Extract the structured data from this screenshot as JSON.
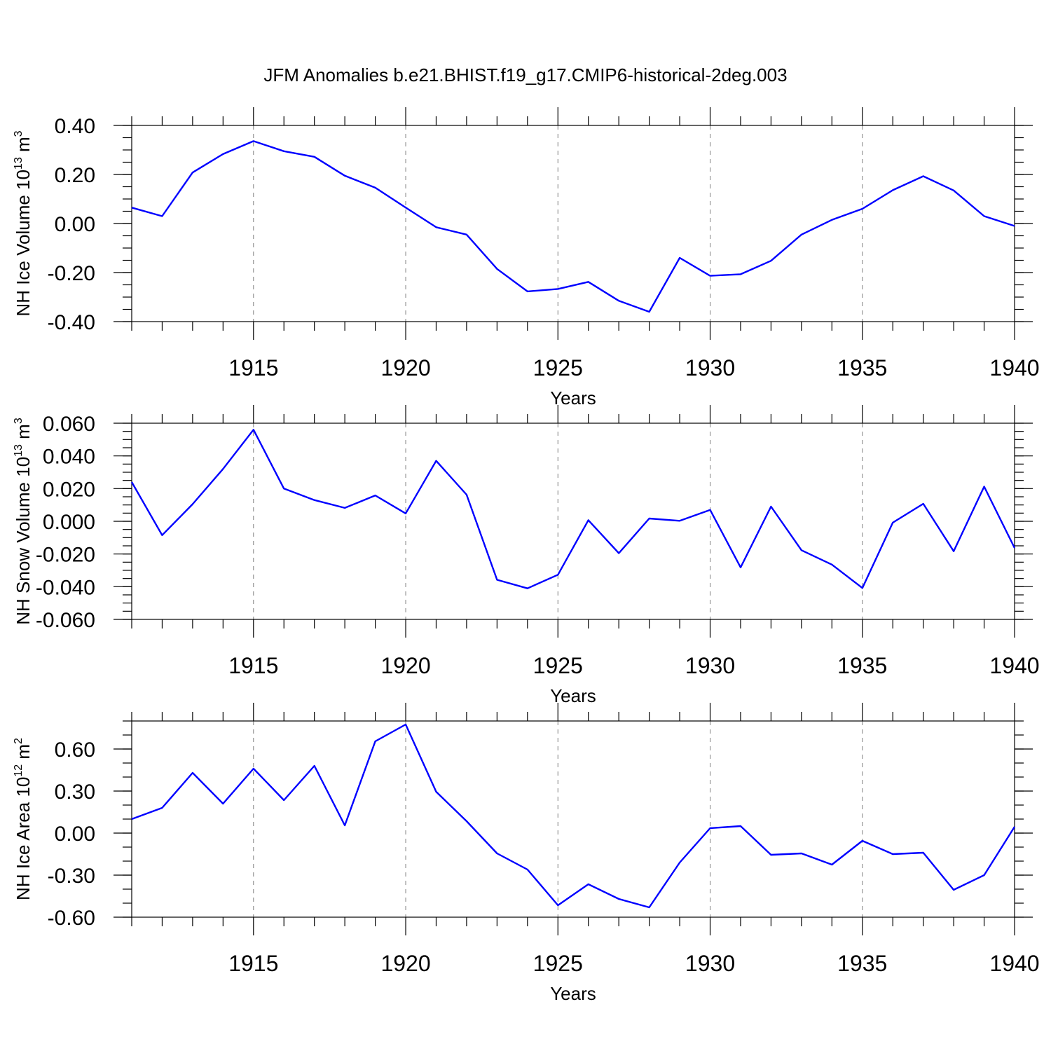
{
  "colors": {
    "line": "#0000ff",
    "axis": "#000000",
    "grid": "#808080"
  },
  "title": "JFM Anomalies b.e21.BHIST.f19_g17.CMIP6-historical-2deg.003",
  "chart_data": [
    {
      "type": "line",
      "name": "ice-volume",
      "title": "JFM Anomalies b.e21.BHIST.f19_g17.CMIP6-historical-2deg.003",
      "ylabel": {
        "base": "NH Ice Volume 10",
        "exp": "13",
        "unit": " m",
        "unit_exp": "3"
      },
      "xlabel": "Years",
      "xlim": [
        1911,
        1940
      ],
      "ylim": [
        -0.4,
        0.4
      ],
      "x_ticks": [
        1915,
        1920,
        1925,
        1930,
        1935,
        1940
      ],
      "x_tick_labels": [
        "1915",
        "1920",
        "1925",
        "1930",
        "1935",
        "1940"
      ],
      "y_ticks": [
        -0.4,
        -0.2,
        0.0,
        0.2,
        0.4
      ],
      "y_tick_labels": [
        "-0.40",
        "-0.20",
        "0.00",
        "0.20",
        "0.40"
      ],
      "y_minor_step": 0.05,
      "grid": "vertical dashed at major x ticks",
      "x": [
        1911,
        1912,
        1913,
        1914,
        1915,
        1916,
        1917,
        1918,
        1919,
        1920,
        1921,
        1922,
        1923,
        1924,
        1925,
        1926,
        1927,
        1928,
        1929,
        1930,
        1931,
        1932,
        1933,
        1934,
        1935,
        1936,
        1937,
        1938,
        1939,
        1940
      ],
      "values": [
        0.065,
        0.03,
        0.208,
        0.283,
        0.336,
        0.295,
        0.272,
        0.195,
        0.146,
        0.065,
        -0.015,
        -0.045,
        -0.185,
        -0.277,
        -0.267,
        -0.238,
        -0.315,
        -0.36,
        -0.14,
        -0.213,
        -0.207,
        -0.152,
        -0.045,
        0.015,
        0.06,
        0.136,
        0.193,
        0.135,
        0.03,
        -0.01
      ]
    },
    {
      "type": "line",
      "name": "snow-volume",
      "ylabel": {
        "base": "NH Snow Volume 10",
        "exp": "13",
        "unit": " m",
        "unit_exp": "3"
      },
      "xlabel": "Years",
      "xlim": [
        1911,
        1940
      ],
      "ylim": [
        -0.06,
        0.06
      ],
      "x_ticks": [
        1915,
        1920,
        1925,
        1930,
        1935,
        1940
      ],
      "x_tick_labels": [
        "1915",
        "1920",
        "1925",
        "1930",
        "1935",
        "1940"
      ],
      "y_ticks": [
        -0.06,
        -0.04,
        -0.02,
        0.0,
        0.02,
        0.04,
        0.06
      ],
      "y_tick_labels": [
        "-0.060",
        "-0.040",
        "-0.020",
        "0.000",
        "0.020",
        "0.040",
        "0.060"
      ],
      "y_minor_step": 0.005,
      "grid": "vertical dashed at major x ticks",
      "x": [
        1911,
        1912,
        1913,
        1914,
        1915,
        1916,
        1917,
        1918,
        1919,
        1920,
        1921,
        1922,
        1923,
        1924,
        1925,
        1926,
        1927,
        1928,
        1929,
        1930,
        1931,
        1932,
        1933,
        1934,
        1935,
        1936,
        1937,
        1938,
        1939,
        1940
      ],
      "values": [
        0.024,
        -0.0085,
        0.0105,
        0.032,
        0.056,
        0.02,
        0.013,
        0.0082,
        0.0158,
        0.0048,
        0.037,
        0.0163,
        -0.0358,
        -0.041,
        -0.0327,
        0.0007,
        -0.0195,
        0.0017,
        0.0003,
        0.007,
        -0.0282,
        0.009,
        -0.0177,
        -0.0265,
        -0.0408,
        -0.0008,
        0.0107,
        -0.0183,
        0.0212,
        -0.0163
      ]
    },
    {
      "type": "line",
      "name": "ice-area",
      "ylabel": {
        "base": "NH Ice Area 10",
        "exp": "12",
        "unit": " m",
        "unit_exp": "2"
      },
      "xlabel": "Years",
      "xlim": [
        1911,
        1940
      ],
      "ylim": [
        -0.6,
        0.8
      ],
      "x_ticks": [
        1915,
        1920,
        1925,
        1930,
        1935,
        1940
      ],
      "x_tick_labels": [
        "1915",
        "1920",
        "1925",
        "1930",
        "1935",
        "1940"
      ],
      "y_ticks": [
        -0.6,
        -0.3,
        0.0,
        0.3,
        0.6
      ],
      "y_tick_labels": [
        "-0.60",
        "-0.30",
        "0.00",
        "0.30",
        "0.60"
      ],
      "y_minor_step": 0.1,
      "grid": "vertical dashed at major x ticks",
      "x": [
        1911,
        1912,
        1913,
        1914,
        1915,
        1916,
        1917,
        1918,
        1919,
        1920,
        1921,
        1922,
        1923,
        1924,
        1925,
        1926,
        1927,
        1928,
        1929,
        1930,
        1931,
        1932,
        1933,
        1934,
        1935,
        1936,
        1937,
        1938,
        1939,
        1940
      ],
      "values": [
        0.1,
        0.18,
        0.43,
        0.21,
        0.46,
        0.235,
        0.48,
        0.055,
        0.655,
        0.775,
        0.295,
        0.085,
        -0.145,
        -0.26,
        -0.515,
        -0.365,
        -0.47,
        -0.53,
        -0.21,
        0.035,
        0.05,
        -0.155,
        -0.145,
        -0.225,
        -0.055,
        -0.15,
        -0.14,
        -0.405,
        -0.3,
        0.045
      ]
    }
  ]
}
